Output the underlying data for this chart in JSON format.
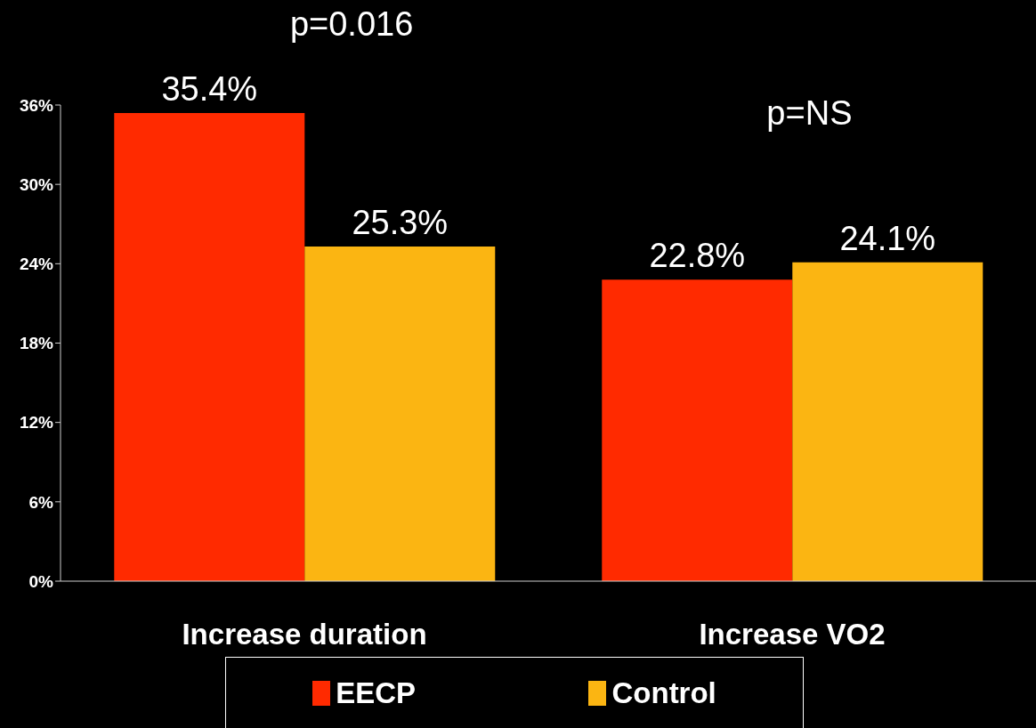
{
  "chart_data": {
    "type": "bar",
    "categories": [
      "Increase duration",
      "Increase VO2"
    ],
    "series": [
      {
        "name": "EECP",
        "color": "#ff2a00",
        "values": [
          35.4,
          22.8
        ],
        "value_labels": [
          "35.4%",
          "22.8%"
        ]
      },
      {
        "name": "Control",
        "color": "#fbb512",
        "values": [
          25.3,
          24.1
        ],
        "value_labels": [
          "25.3%",
          "24.1%"
        ]
      }
    ],
    "ylim": [
      0,
      36
    ],
    "yticks": [
      {
        "value": 0,
        "label": "0%"
      },
      {
        "value": 6,
        "label": "6%"
      },
      {
        "value": 12,
        "label": "12%"
      },
      {
        "value": 18,
        "label": "18%"
      },
      {
        "value": 24,
        "label": "24%"
      },
      {
        "value": 30,
        "label": "30%"
      },
      {
        "value": 36,
        "label": "36%"
      }
    ],
    "legend": "bottom",
    "annotations": [
      "p=0.016",
      "p=NS"
    ]
  }
}
